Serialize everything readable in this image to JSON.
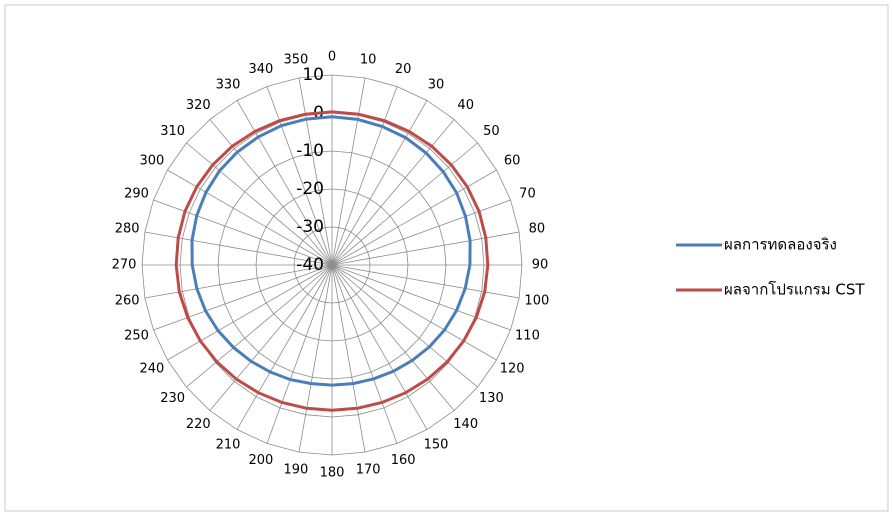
{
  "chart_data": {
    "type": "radar",
    "categories": [
      "0",
      "10",
      "20",
      "30",
      "40",
      "50",
      "60",
      "70",
      "80",
      "90",
      "100",
      "110",
      "120",
      "130",
      "140",
      "150",
      "160",
      "170",
      "180",
      "190",
      "200",
      "210",
      "220",
      "230",
      "240",
      "250",
      "260",
      "270",
      "280",
      "290",
      "300",
      "310",
      "320",
      "330",
      "340",
      "350"
    ],
    "series": [
      {
        "name": "ผลการทดลองจริง",
        "color": "#4a7ebb",
        "values": [
          -1.0,
          -1.1,
          -1.2,
          -1.3,
          -1.5,
          -1.8,
          -2.1,
          -2.6,
          -3.1,
          -3.7,
          -4.4,
          -5.1,
          -5.8,
          -6.5,
          -7.2,
          -7.7,
          -8.1,
          -8.3,
          -8.4,
          -8.3,
          -7.9,
          -7.5,
          -6.9,
          -6.2,
          -5.4,
          -4.6,
          -3.9,
          -3.2,
          -2.6,
          -2.1,
          -1.7,
          -1.4,
          -1.2,
          -1.1,
          -1.0,
          -1.0
        ]
      },
      {
        "name": "ผลจากโปรแกรม CST",
        "color": "#be4b48",
        "values": [
          0.3,
          0.3,
          0.4,
          0.6,
          0.8,
          1.0,
          1.1,
          1.2,
          1.1,
          1.0,
          0.8,
          0.4,
          0.0,
          -0.4,
          -0.8,
          -1.2,
          -1.5,
          -1.7,
          -1.8,
          -1.7,
          -1.5,
          -1.2,
          -0.8,
          -0.4,
          0.0,
          0.4,
          0.8,
          1.0,
          1.1,
          1.2,
          1.1,
          1.0,
          0.8,
          0.6,
          0.4,
          0.3
        ]
      }
    ],
    "ylim": [
      -40,
      10
    ],
    "yticks": [
      -40,
      -30,
      -20,
      -10,
      0,
      10
    ],
    "grid": true,
    "legend": "right"
  }
}
